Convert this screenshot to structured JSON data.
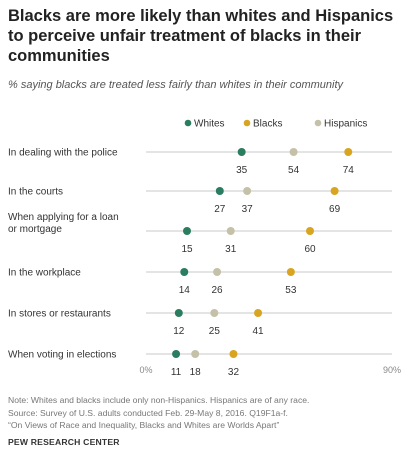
{
  "title": "Blacks are more likely than whites and Hispanics to perceive unfair treatment of blacks in their communities",
  "subtitle": "% saying blacks are treated less fairly than whites in their community",
  "notes": [
    "Note: Whites and blacks include only non-Hispanics. Hispanics are of any race.",
    "Source: Survey of U.S. adults conducted Feb. 29-May 8, 2016. Q19F1a-f.",
    "“On Views of Race and Inequality, Blacks and Whites are Worlds Apart”"
  ],
  "brand": "PEW RESEARCH CENTER",
  "chart_data": {
    "type": "dot",
    "categories": [
      [
        "In dealing with the police"
      ],
      [
        "In the courts"
      ],
      [
        "When applying for a loan",
        "or mortgage"
      ],
      [
        "In the workplace"
      ],
      [
        "In stores or restaurants"
      ],
      [
        "When voting in elections"
      ]
    ],
    "series": [
      {
        "name": "Whites",
        "color": "#2a7d5f",
        "values": [
          35,
          27,
          15,
          14,
          12,
          11
        ]
      },
      {
        "name": "Blacks",
        "color": "#d9a520",
        "values": [
          74,
          69,
          60,
          53,
          41,
          32
        ]
      },
      {
        "name": "Hispanics",
        "color": "#c5c1a9",
        "values": [
          54,
          37,
          31,
          26,
          25,
          18
        ]
      }
    ],
    "xlim": [
      0,
      90
    ],
    "x_tick_labels": [
      "0%",
      "90%"
    ],
    "legend_position": "top"
  }
}
